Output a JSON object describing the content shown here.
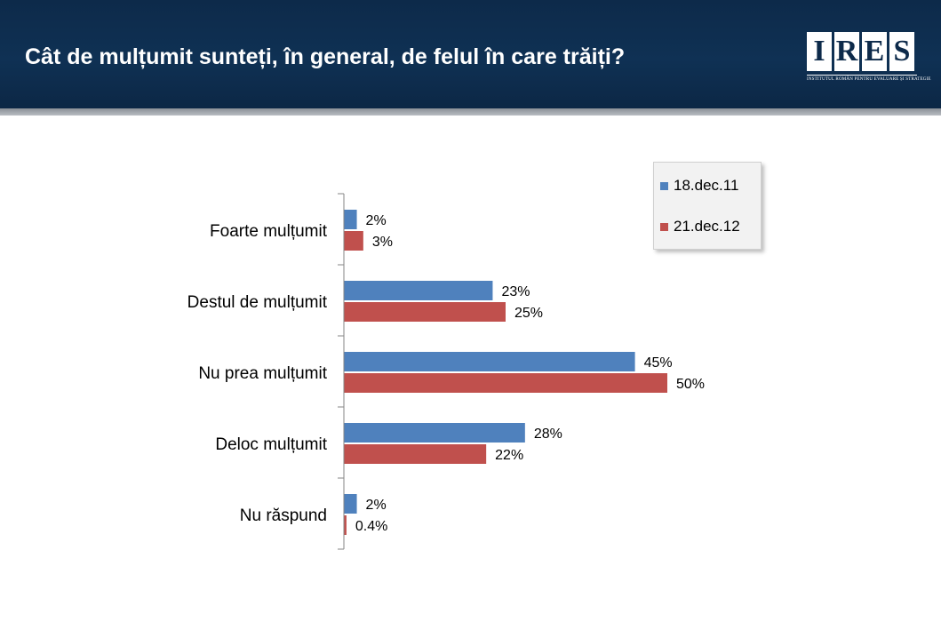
{
  "header": {
    "title": "Cât de mulțumit sunteți, în general, de felul în care trăiți?",
    "logo": {
      "letters": [
        "I",
        "R",
        "E",
        "S"
      ],
      "subtitle": "INSTITUTUL ROMÂN PENTRU EVALUARE ȘI STRATEGIE"
    }
  },
  "colors": {
    "header_bg": "#0f3154",
    "series_1": "#4f81bd",
    "series_2": "#c0504d"
  },
  "chart_data": {
    "type": "bar",
    "orientation": "horizontal",
    "categories": [
      "Foarte mulțumit",
      "Destul de mulțumit",
      "Nu prea mulțumit",
      "Deloc mulțumit",
      "Nu răspund"
    ],
    "series": [
      {
        "name": "18.dec.11",
        "values": [
          2,
          23,
          45,
          28,
          2
        ],
        "labels": [
          "2%",
          "23%",
          "45%",
          "28%",
          "2%"
        ],
        "color": "#4f81bd"
      },
      {
        "name": "21.dec.12",
        "values": [
          3,
          25,
          50,
          22,
          0.4
        ],
        "labels": [
          "3%",
          "25%",
          "50%",
          "22%",
          "0.4%"
        ],
        "color": "#c0504d"
      }
    ],
    "unit": "%",
    "xlim": [
      0,
      60
    ],
    "grid": false,
    "legend_position": "top-right"
  }
}
